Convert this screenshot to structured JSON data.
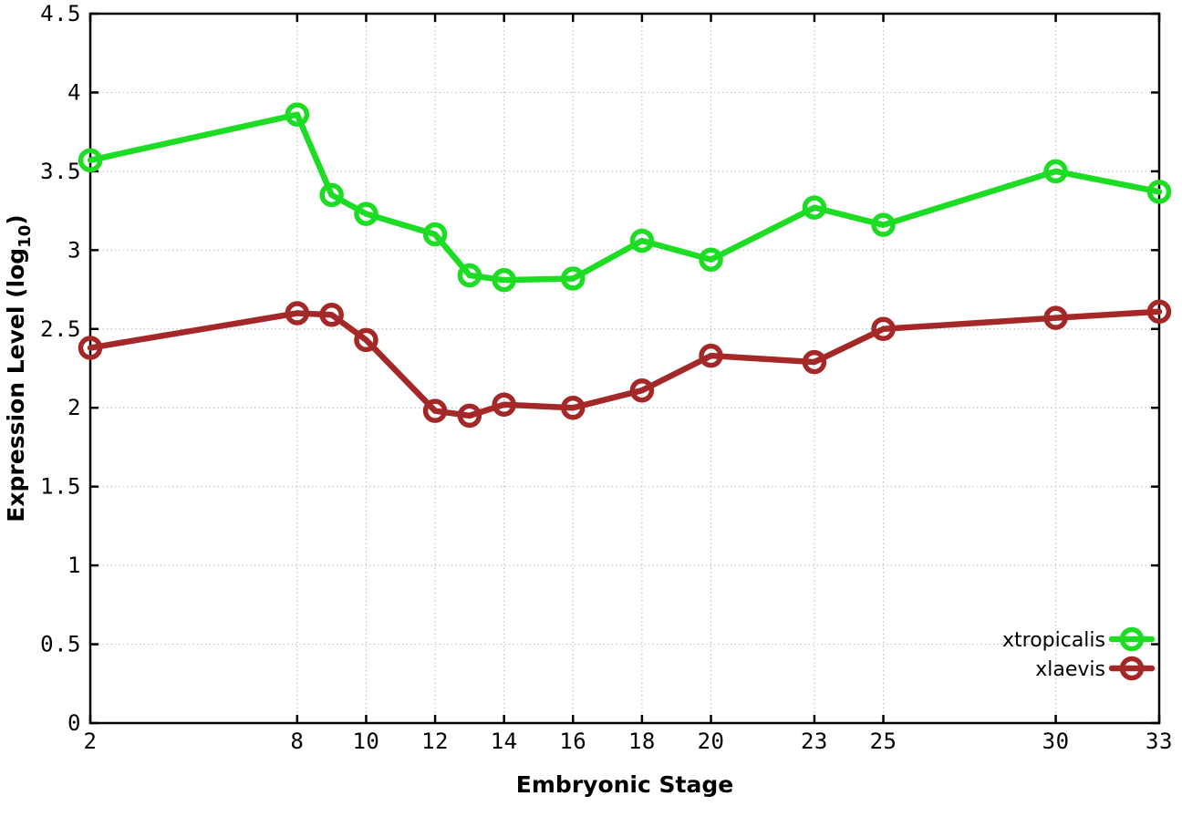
{
  "chart_data": {
    "type": "line",
    "title": "",
    "xlabel": "Embryonic Stage",
    "ylabel": "Expression Level (log10)",
    "ylabel_parts": {
      "prefix": "Expression Level (log",
      "subscript": "10",
      "suffix": ")"
    },
    "x": [
      2,
      8,
      9,
      10,
      12,
      13,
      14,
      16,
      18,
      20,
      23,
      25,
      30,
      33
    ],
    "series": [
      {
        "name": "xtropicalis",
        "color": "#1cdc24",
        "marker": "open-circle",
        "values": [
          3.57,
          3.86,
          3.35,
          3.23,
          3.1,
          2.84,
          2.81,
          2.82,
          3.06,
          2.94,
          3.27,
          3.16,
          3.5,
          3.37
        ]
      },
      {
        "name": "xlaevis",
        "color": "#a52828",
        "marker": "open-circle",
        "values": [
          2.38,
          2.6,
          2.59,
          2.43,
          1.98,
          1.95,
          2.02,
          2.0,
          2.11,
          2.33,
          2.29,
          2.5,
          2.57,
          2.61
        ]
      }
    ],
    "xlim": [
      2,
      33
    ],
    "ylim": [
      0,
      4.5
    ],
    "xticks": [
      2,
      8,
      10,
      12,
      14,
      16,
      18,
      20,
      23,
      25,
      30,
      33
    ],
    "yticks": [
      0,
      0.5,
      1,
      1.5,
      2,
      2.5,
      3,
      3.5,
      4,
      4.5
    ],
    "grid": true,
    "legend_position": "bottom-right",
    "colors": {
      "background": "#ffffff",
      "grid": "#c4c4c4",
      "axis": "#000000",
      "text": "#000000"
    }
  }
}
